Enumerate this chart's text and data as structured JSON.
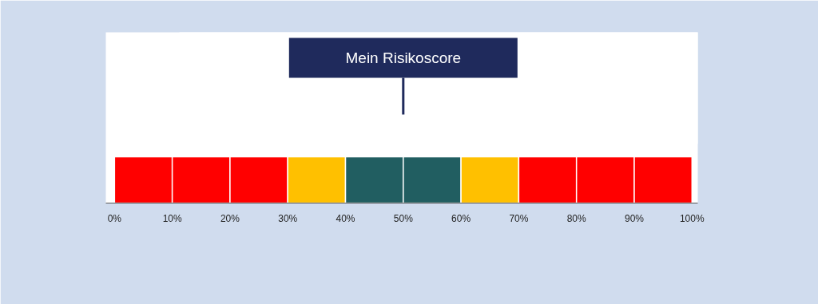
{
  "chart_data": {
    "type": "bar",
    "orientation": "horizontal",
    "stacked": true,
    "categories": [
      null
    ],
    "series": [
      {
        "color": "#ff0000",
        "values": [
          10
        ]
      },
      {
        "color": "#ff0000",
        "values": [
          10
        ]
      },
      {
        "color": "#ff0000",
        "values": [
          10
        ]
      },
      {
        "color": "#ffc000",
        "values": [
          10
        ]
      },
      {
        "color": "#215e61",
        "values": [
          10
        ]
      },
      {
        "color": "#215e61",
        "values": [
          10
        ]
      },
      {
        "color": "#ffc000",
        "values": [
          10
        ]
      },
      {
        "color": "#ff0000",
        "values": [
          10
        ]
      },
      {
        "color": "#ff0000",
        "values": [
          10
        ]
      },
      {
        "color": "#ff0000",
        "values": [
          10
        ]
      }
    ],
    "xlim": [
      -1.5,
      101
    ],
    "xticks": [
      {
        "value": 0,
        "label": "0%"
      },
      {
        "value": 10,
        "label": "10%"
      },
      {
        "value": 20,
        "label": "20%"
      },
      {
        "value": 30,
        "label": "30%"
      },
      {
        "value": 40,
        "label": "40%"
      },
      {
        "value": 50,
        "label": "50%"
      },
      {
        "value": 60,
        "label": "60%"
      },
      {
        "value": 70,
        "label": "70%"
      },
      {
        "value": 80,
        "label": "80%"
      },
      {
        "value": 90,
        "label": "90%"
      },
      {
        "value": 100,
        "label": "100%"
      }
    ],
    "grid": false,
    "annotations": [
      {
        "text": "Mein Risikoscore",
        "x": 50
      }
    ]
  }
}
